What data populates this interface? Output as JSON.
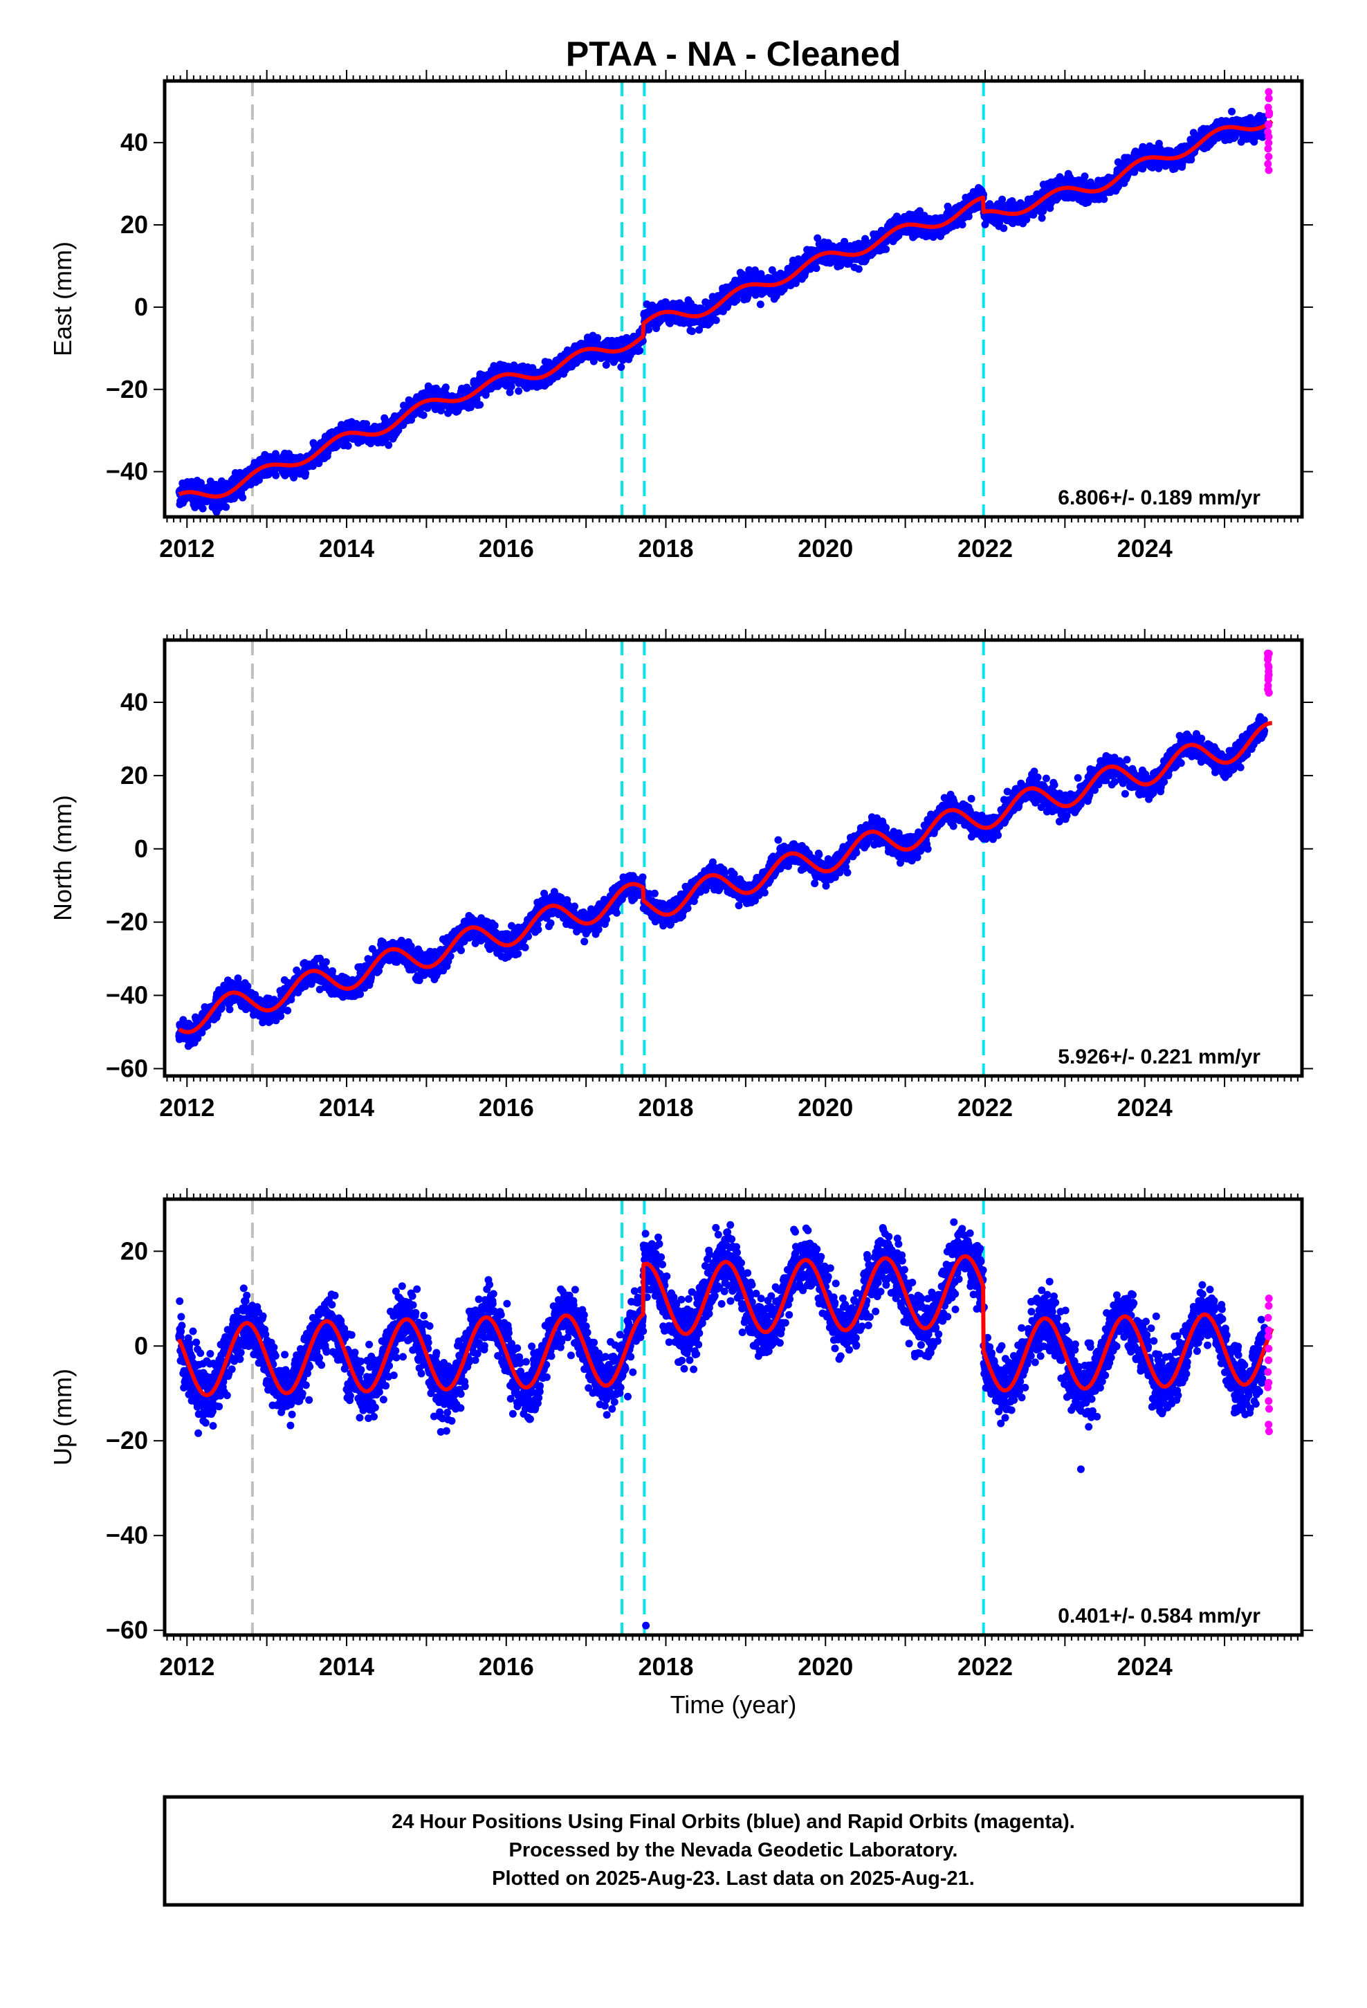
{
  "title": "PTAA  - NA - Cleaned",
  "xlabel": "Time (year)",
  "caption": [
    "24 Hour Positions Using Final Orbits (blue) and Rapid Orbits (magenta).",
    "Processed by the Nevada Geodetic Laboratory.",
    "Plotted on 2025-Aug-23. Last data on 2025-Aug-21."
  ],
  "colors": {
    "final": "#0000ff",
    "rapid": "#ff00ff",
    "fit": "#ff0000",
    "equipment_line": "#00e5ee",
    "other_line": "#c0c0c0"
  },
  "chart_data": [
    {
      "type": "scatter",
      "ylabel": "East (mm)",
      "rate": "6.806+/- 0.189 mm/yr",
      "xlim": [
        2011.72,
        2025.97
      ],
      "ylim": [
        -51,
        55
      ],
      "xticks": [
        2012,
        2014,
        2016,
        2018,
        2020,
        2022,
        2024
      ],
      "yticks": [
        -40,
        -20,
        0,
        20,
        40
      ],
      "grid": false,
      "start": 2011.9,
      "end": 2025.6,
      "trend": {
        "start": -46.5,
        "slope": 6.806
      },
      "seasonal": {
        "amplitude": 1.6,
        "peak": 0.95
      },
      "steps": [
        {
          "x": 2017.72,
          "offset": 3.0
        },
        {
          "x": 2021.98,
          "offset": -3.5
        }
      ],
      "wander": [
        {
          "x": 2012.6,
          "dy": -1.5
        },
        {
          "x": 2015.4,
          "dy": 1.5
        },
        {
          "x": 2018.6,
          "dy": -1.5
        },
        {
          "x": 2023.4,
          "dy": -1.5
        }
      ],
      "scatter": 1.3,
      "rapid": {
        "start": 2025.5,
        "center": 43,
        "spread": [
          34,
          52
        ]
      },
      "vlines": [
        {
          "x": 2012.82,
          "kind": "other"
        },
        {
          "x": 2017.45,
          "kind": "equipment"
        },
        {
          "x": 2017.73,
          "kind": "equipment"
        },
        {
          "x": 2021.98,
          "kind": "equipment"
        }
      ]
    },
    {
      "type": "scatter",
      "ylabel": "North (mm)",
      "rate": "5.926+/- 0.221 mm/yr",
      "xlim": [
        2011.72,
        2025.97
      ],
      "ylim": [
        -62,
        57
      ],
      "xticks": [
        2012,
        2014,
        2016,
        2018,
        2020,
        2022,
        2024
      ],
      "yticks": [
        -60,
        -40,
        -20,
        0,
        20,
        40
      ],
      "grid": false,
      "start": 2011.9,
      "end": 2025.6,
      "trend": {
        "start": -47,
        "slope": 5.926
      },
      "seasonal": {
        "amplitude": 3.8,
        "peak": 0.55
      },
      "steps": [
        {
          "x": 2017.72,
          "offset": -3.5
        }
      ],
      "wander": [],
      "scatter": 1.6,
      "rapid": {
        "start": 2025.5,
        "center": 47,
        "spread": [
          42,
          54
        ]
      },
      "vlines": [
        {
          "x": 2012.82,
          "kind": "other"
        },
        {
          "x": 2017.45,
          "kind": "equipment"
        },
        {
          "x": 2017.73,
          "kind": "equipment"
        },
        {
          "x": 2021.98,
          "kind": "equipment"
        }
      ]
    },
    {
      "type": "scatter",
      "ylabel": "Up (mm)",
      "rate": "0.401+/- 0.584 mm/yr",
      "xlim": [
        2011.72,
        2025.97
      ],
      "ylim": [
        -61,
        31
      ],
      "xticks": [
        2012,
        2014,
        2016,
        2018,
        2020,
        2022,
        2024
      ],
      "yticks": [
        -60,
        -40,
        -20,
        0,
        20
      ],
      "grid": false,
      "start": 2011.9,
      "end": 2025.6,
      "trend": {
        "start": -3,
        "slope": 0.4
      },
      "seasonal": {
        "amplitude": 7.5,
        "peak": 0.75
      },
      "steps": [
        {
          "x": 2017.72,
          "offset": 10.5
        },
        {
          "x": 2021.98,
          "offset": -13.5
        }
      ],
      "wander": [],
      "scatter": 3.2,
      "rapid": {
        "start": 2025.5,
        "center": -2,
        "spread": [
          -18,
          10
        ]
      },
      "outliers": [
        {
          "x": 2017.75,
          "y": -59
        },
        {
          "x": 2023.2,
          "y": -26
        }
      ],
      "vlines": [
        {
          "x": 2012.82,
          "kind": "other"
        },
        {
          "x": 2017.45,
          "kind": "equipment"
        },
        {
          "x": 2017.73,
          "kind": "equipment"
        },
        {
          "x": 2021.98,
          "kind": "equipment"
        }
      ]
    }
  ]
}
